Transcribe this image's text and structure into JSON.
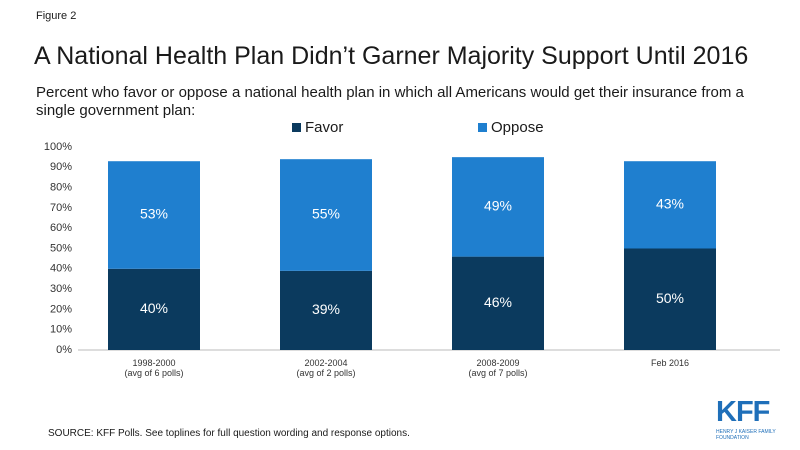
{
  "figure_label": "Figure 2",
  "chart_data": {
    "type": "stacked_bar",
    "title": "A National Health Plan Didn’t Garner Majority Support Until 2016",
    "subtitle": "Percent who favor or oppose a national health plan in which all Americans would get their insurance from a single government plan:",
    "categories": [
      [
        "1998-2000",
        "(avg of 6 polls)"
      ],
      [
        "2002-2004",
        "(avg of 2 polls)"
      ],
      [
        "2008-2009",
        "(avg of 7 polls)"
      ],
      [
        "Feb 2016"
      ]
    ],
    "series": [
      {
        "name": "Favor",
        "color": "#0b3a5e",
        "values": [
          40,
          39,
          46,
          50
        ],
        "value_labels": [
          "40%",
          "39%",
          "46%",
          "50%"
        ]
      },
      {
        "name": "Oppose",
        "color": "#1f7fcf",
        "values": [
          53,
          55,
          49,
          43
        ],
        "value_labels": [
          "53%",
          "55%",
          "49%",
          "43%"
        ]
      }
    ],
    "ylim": [
      0,
      100
    ],
    "yticks": [
      {
        "value": 0,
        "label": "0%"
      },
      {
        "value": 10,
        "label": "10%"
      },
      {
        "value": 20,
        "label": "20%"
      },
      {
        "value": 30,
        "label": "30%"
      },
      {
        "value": 40,
        "label": "40%"
      },
      {
        "value": 50,
        "label": "50%"
      },
      {
        "value": 60,
        "label": "60%"
      },
      {
        "value": 70,
        "label": "70%"
      },
      {
        "value": 80,
        "label": "80%"
      },
      {
        "value": 90,
        "label": "90%"
      },
      {
        "value": 100,
        "label": "100%"
      }
    ],
    "legend": "top",
    "grid": false
  },
  "source": "SOURCE: KFF Polls. See toplines for full question wording and response options.",
  "logo": {
    "name": "KFF",
    "subtitle": "HENRY J KAISER FAMILY FOUNDATION"
  }
}
